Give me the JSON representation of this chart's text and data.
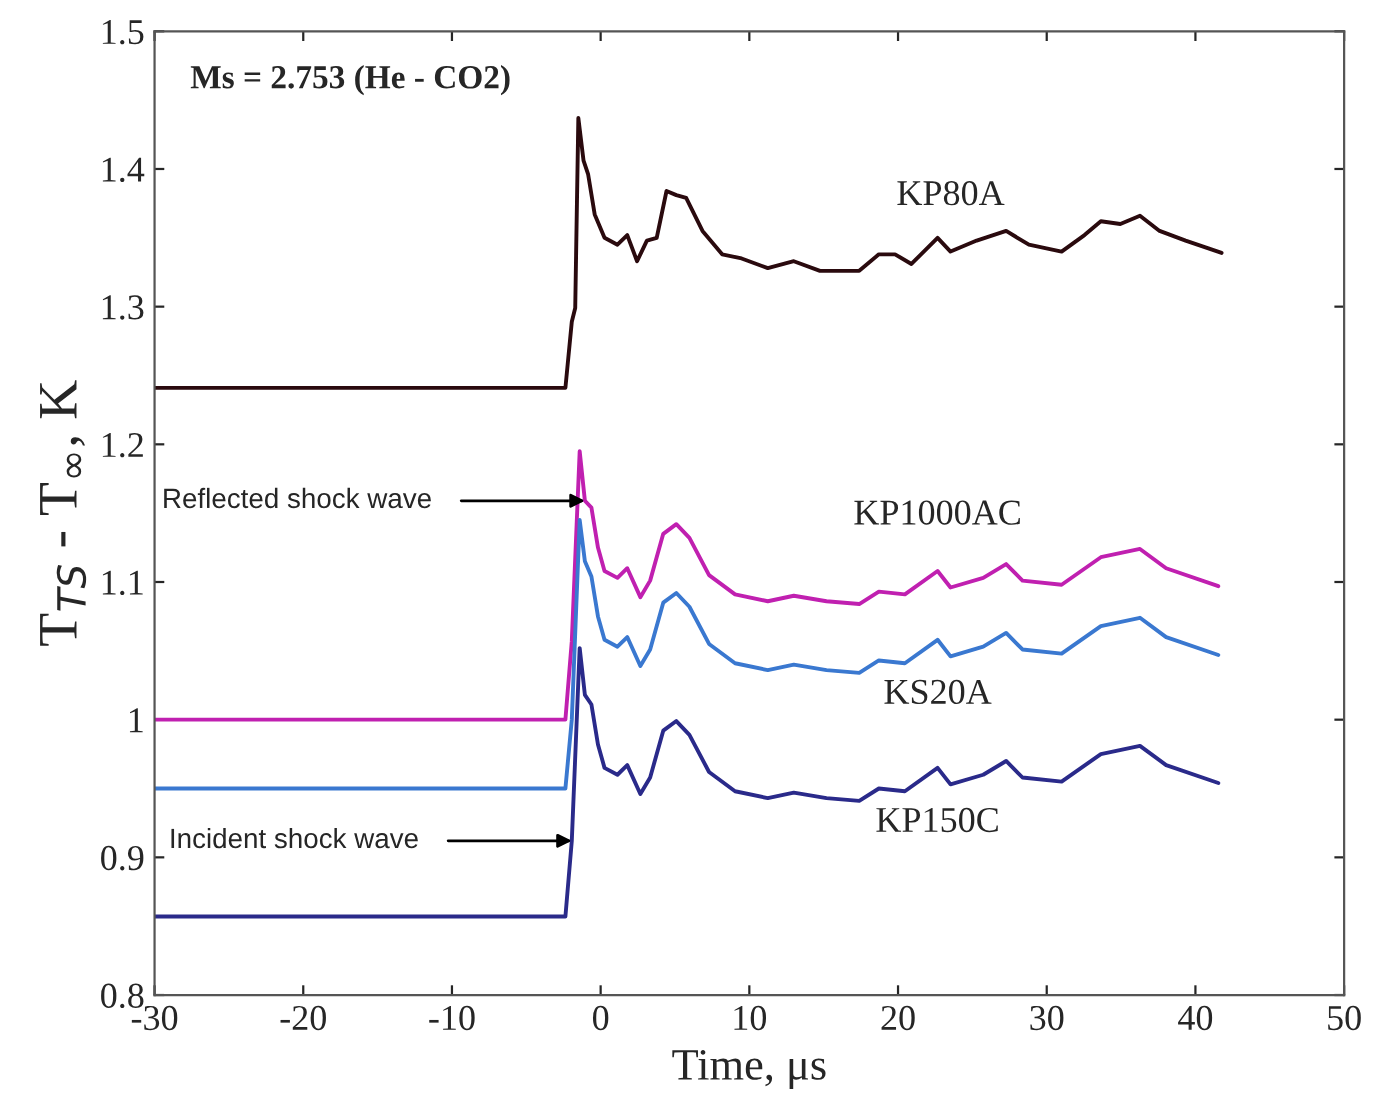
{
  "chart_data": {
    "type": "line",
    "title": "Ms = 2.753 (He - CO2)",
    "xlabel": "Time, μs",
    "ylabel": "T$_{TS}$ - T$_{∞}$, K",
    "xlim": [
      -30,
      50
    ],
    "xticks": [
      -30,
      -20,
      -10,
      0,
      10,
      20,
      30,
      40,
      50
    ],
    "ylim": [
      0.8,
      1.5
    ],
    "yticks": [
      0.8,
      0.9,
      1,
      1.1,
      1.2,
      1.3,
      1.4,
      1.5
    ],
    "grid": false,
    "legend": false,
    "marker": "none",
    "line_style": "solid",
    "series": [
      {
        "name": "KP80A",
        "color": "#2a0a0e",
        "x": [
          -30,
          -2.37,
          -1.94,
          -1.71,
          -1.5,
          -1.15,
          -0.84,
          -0.4,
          0.26,
          1.13,
          1.79,
          2.45,
          3.11,
          3.77,
          4.43,
          5.09,
          5.75,
          6.85,
          8.17,
          9.48,
          11.24,
          12.99,
          14.75,
          17.39,
          18.71,
          19.8,
          20.9,
          22.66,
          23.53,
          25.29,
          27.27,
          28.8,
          31.0,
          32.54,
          33.64,
          34.95,
          36.27,
          37.59,
          39.34,
          41.76
        ],
        "values": [
          1.241,
          1.241,
          1.289,
          1.299,
          1.437,
          1.406,
          1.396,
          1.367,
          1.35,
          1.345,
          1.352,
          1.333,
          1.348,
          1.35,
          1.384,
          1.381,
          1.379,
          1.355,
          1.338,
          1.335,
          1.328,
          1.333,
          1.326,
          1.326,
          1.338,
          1.338,
          1.331,
          1.35,
          1.34,
          1.348,
          1.355,
          1.345,
          1.34,
          1.352,
          1.362,
          1.36,
          1.366,
          1.355,
          1.348,
          1.339
        ]
      },
      {
        "name": "KP1000AC",
        "color": "#c020b0",
        "x": [
          -30,
          -2.37,
          -1.94,
          -1.41,
          -1.06,
          -0.62,
          -0.18,
          0.26,
          1.13,
          1.79,
          2.67,
          3.33,
          4.21,
          5.09,
          5.97,
          7.29,
          9.04,
          11.24,
          12.99,
          15.19,
          17.39,
          18.71,
          20.46,
          22.66,
          23.53,
          25.73,
          27.27,
          28.37,
          31.0,
          33.64,
          36.27,
          38.03,
          41.54
        ],
        "values": [
          1.0,
          1.0,
          1.057,
          1.195,
          1.159,
          1.154,
          1.125,
          1.108,
          1.103,
          1.11,
          1.089,
          1.101,
          1.135,
          1.142,
          1.132,
          1.105,
          1.091,
          1.086,
          1.09,
          1.086,
          1.084,
          1.093,
          1.091,
          1.108,
          1.096,
          1.103,
          1.113,
          1.101,
          1.098,
          1.118,
          1.124,
          1.11,
          1.097
        ]
      },
      {
        "name": "KS20A",
        "color": "#3a78d0",
        "x": [
          -30,
          -2.37,
          -1.94,
          -1.41,
          -1.06,
          -0.62,
          -0.18,
          0.26,
          1.13,
          1.79,
          2.67,
          3.33,
          4.21,
          5.09,
          5.97,
          7.29,
          9.04,
          11.24,
          12.99,
          15.19,
          17.39,
          18.71,
          20.46,
          22.66,
          23.53,
          25.73,
          27.27,
          28.37,
          31.0,
          33.64,
          36.27,
          38.03,
          41.54
        ],
        "values": [
          0.95,
          0.95,
          1.0,
          1.145,
          1.115,
          1.104,
          1.075,
          1.058,
          1.053,
          1.06,
          1.039,
          1.051,
          1.085,
          1.092,
          1.082,
          1.055,
          1.041,
          1.036,
          1.04,
          1.036,
          1.034,
          1.043,
          1.041,
          1.058,
          1.046,
          1.053,
          1.063,
          1.051,
          1.048,
          1.068,
          1.074,
          1.06,
          1.047
        ]
      },
      {
        "name": "KP150C",
        "color": "#2a2a8a",
        "x": [
          -30,
          -2.37,
          -1.94,
          -1.41,
          -1.06,
          -0.62,
          -0.18,
          0.26,
          1.13,
          1.79,
          2.67,
          3.33,
          4.21,
          5.09,
          5.97,
          7.29,
          9.04,
          11.24,
          12.99,
          15.19,
          17.39,
          18.71,
          20.46,
          22.66,
          23.53,
          25.73,
          27.27,
          28.37,
          31.0,
          33.64,
          36.27,
          38.03,
          41.54
        ],
        "values": [
          0.857,
          0.857,
          0.912,
          1.052,
          1.018,
          1.011,
          0.982,
          0.965,
          0.96,
          0.967,
          0.946,
          0.958,
          0.992,
          0.999,
          0.989,
          0.962,
          0.948,
          0.943,
          0.947,
          0.943,
          0.941,
          0.95,
          0.948,
          0.965,
          0.953,
          0.96,
          0.97,
          0.958,
          0.955,
          0.975,
          0.981,
          0.967,
          0.954
        ]
      }
    ],
    "annotations": [
      {
        "text": "Reflected shock wave",
        "x": -1.06,
        "y": 1.159
      },
      {
        "text": "Incident shock wave",
        "x": -1.94,
        "y": 0.912
      }
    ]
  }
}
